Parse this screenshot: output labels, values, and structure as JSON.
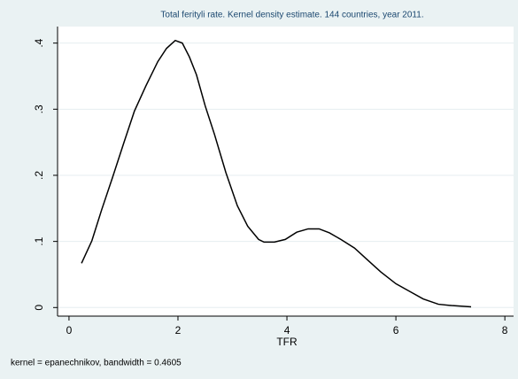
{
  "chart_data": {
    "type": "line",
    "title": "Total ferityli rate. Kernel density estimate. 144 countries, year 2011.",
    "x_label": "TFR",
    "note": "kernel = epanechnikov, bandwidth = 0.4605",
    "color": "#000000",
    "grid": true,
    "xlim": [
      -0.21,
      8.16
    ],
    "ylim": [
      -0.013,
      0.425
    ],
    "xticks": [
      0,
      2,
      4,
      6,
      8
    ],
    "yticks": [
      0,
      {
        "value": 0.1,
        "label": ".1"
      },
      {
        "value": 0.2,
        "label": ".2"
      },
      {
        "value": 0.3,
        "label": ".3"
      },
      {
        "value": 0.4,
        "label": ".4"
      }
    ],
    "x": [
      0.23,
      0.42,
      0.6,
      0.8,
      1.01,
      1.2,
      1.41,
      1.63,
      1.79,
      1.95,
      2.08,
      2.21,
      2.34,
      2.5,
      2.67,
      2.88,
      3.09,
      3.28,
      3.48,
      3.58,
      3.77,
      3.97,
      4.18,
      4.39,
      4.59,
      4.78,
      4.99,
      5.24,
      5.48,
      5.72,
      6.0,
      6.24,
      6.5,
      6.78,
      7.02,
      7.38
    ],
    "values": [
      0.067,
      0.101,
      0.148,
      0.197,
      0.25,
      0.297,
      0.335,
      0.372,
      0.392,
      0.404,
      0.4,
      0.379,
      0.352,
      0.305,
      0.262,
      0.204,
      0.154,
      0.123,
      0.103,
      0.099,
      0.099,
      0.103,
      0.114,
      0.119,
      0.119,
      0.113,
      0.103,
      0.09,
      0.072,
      0.054,
      0.036,
      0.025,
      0.013,
      0.005,
      0.003,
      0.001
    ]
  }
}
